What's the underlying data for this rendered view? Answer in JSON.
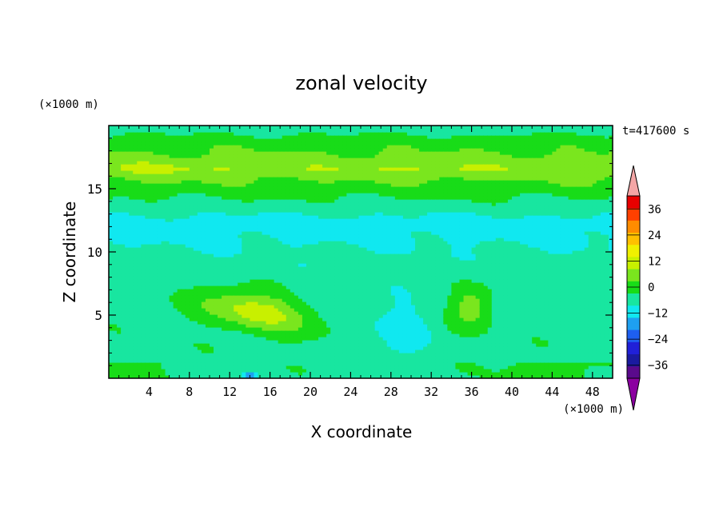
{
  "chart_data": {
    "type": "heatmap",
    "title": "zonal velocity",
    "xlabel": "X coordinate",
    "ylabel": "Z coordinate",
    "x_unit": "(×1000 m)",
    "y_unit": "(×1000 m)",
    "time_label": "t=417600 s",
    "xlim": [
      0,
      50
    ],
    "ylim": [
      0,
      20
    ],
    "x_ticks": [
      4,
      8,
      12,
      16,
      20,
      24,
      28,
      32,
      36,
      40,
      44,
      48
    ],
    "y_ticks": [
      5,
      10,
      15
    ],
    "colorbar": {
      "levels": [
        -42,
        -36,
        -30,
        -24,
        -18,
        -12,
        -6,
        0,
        6,
        12,
        18,
        24,
        30,
        36,
        42
      ],
      "labels": [
        36,
        24,
        12,
        0,
        -12,
        -24,
        -36
      ],
      "colors": [
        "#5a0a8c",
        "#1a1aa0",
        "#2020d8",
        "#1e5ff0",
        "#1ea0f0",
        "#10e8f0",
        "#18e6a0",
        "#18dc18",
        "#7ae61e",
        "#c8f000",
        "#f0f000",
        "#ffc000",
        "#ff8c00",
        "#ff4000",
        "#e80000"
      ],
      "under_color": "#8b00a0",
      "over_color": "#f4a6a6"
    },
    "approx_field": {
      "z_bands": [
        {
          "z": [
            19.5,
            20.0
          ],
          "u": -3
        },
        {
          "z": [
            18.2,
            19.5
          ],
          "u": 3
        },
        {
          "z": [
            15.0,
            18.2
          ],
          "u": 10
        },
        {
          "z": [
            14.0,
            15.0
          ],
          "u": 1
        },
        {
          "z": [
            10.5,
            14.0
          ],
          "u": -9
        },
        {
          "z": [
            8.0,
            10.5
          ],
          "u": -4
        },
        {
          "z": [
            0.0,
            8.0
          ],
          "u": -2
        }
      ],
      "features": [
        {
          "label": "jet core",
          "x": [
            9,
            20
          ],
          "z": [
            3.8,
            7.0
          ],
          "u_max": 15
        },
        {
          "label": "positive patch",
          "x": [
            34,
            38
          ],
          "z": [
            4.0,
            7.5
          ],
          "u_max": 10
        },
        {
          "label": "negative patch",
          "x": [
            26,
            32
          ],
          "z": [
            1.5,
            6.0
          ],
          "u_min": -10
        },
        {
          "label": "minimum",
          "x": [
            13.5,
            14.5
          ],
          "z": [
            0.0,
            0.5
          ],
          "u_min": -18
        }
      ]
    }
  }
}
